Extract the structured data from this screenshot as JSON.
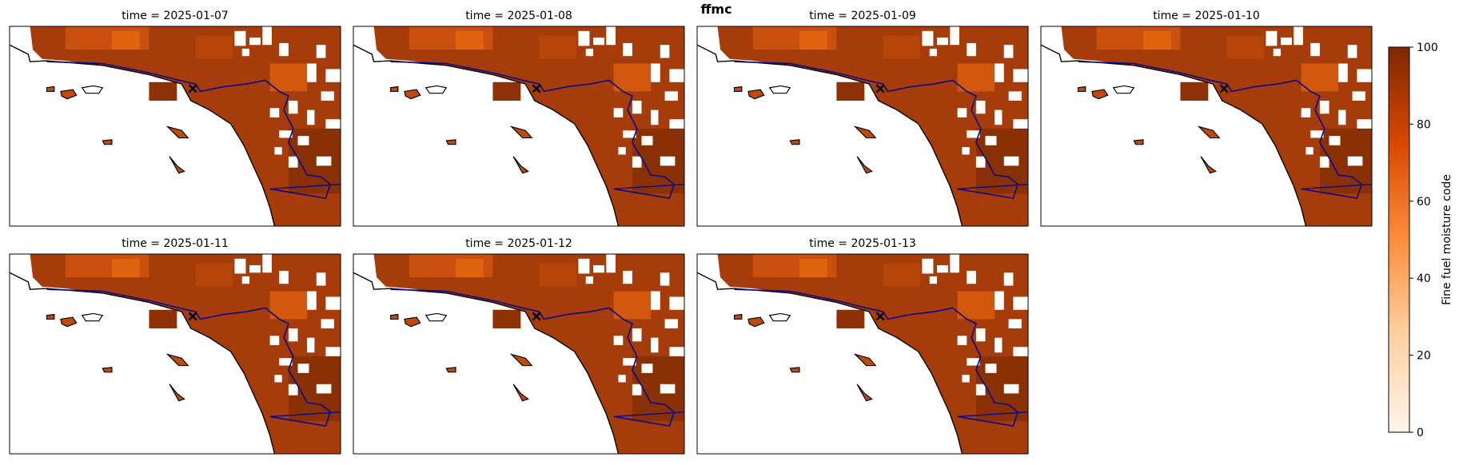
{
  "title": "ffmc",
  "panels": [
    {
      "title": "time = 2025-01-07"
    },
    {
      "title": "time = 2025-01-08"
    },
    {
      "title": "time = 2025-01-09"
    },
    {
      "title": "time = 2025-01-10"
    },
    {
      "title": "time = 2025-01-11"
    },
    {
      "title": "time = 2025-01-12"
    },
    {
      "title": "time = 2025-01-13"
    }
  ],
  "colorbar": {
    "label": "Fine fuel moisture code",
    "lim": [
      0,
      100
    ],
    "ticks": [
      0,
      20,
      40,
      60,
      80,
      100
    ],
    "colors": [
      "#fff5eb",
      "#fdd0a2",
      "#fd8d3c",
      "#d94801",
      "#7f2704"
    ]
  }
}
